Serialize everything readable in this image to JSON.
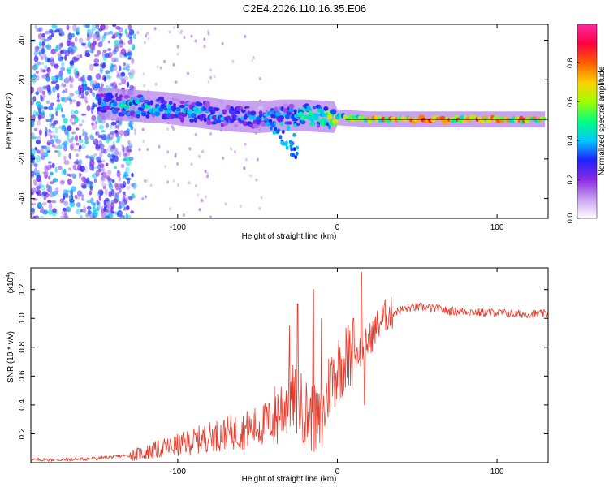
{
  "title": "C2E4.2026.110.16.35.E06",
  "colors": {
    "snr_line": "#e83a2a",
    "spectral_stops": [
      "#ffffff",
      "#c9a0f0",
      "#8a2be2",
      "#2020ff",
      "#00c8ff",
      "#00ff80",
      "#a0ff00",
      "#ffd000",
      "#ff6000",
      "#ff0040",
      "#ff2aa0"
    ]
  },
  "chart_data": [
    {
      "type": "heatmap",
      "name": "spectrogram",
      "xlabel": "Height of straight line (km)",
      "ylabel": "Frequency (Hz)",
      "xlim": [
        -192,
        132
      ],
      "ylim": [
        -50,
        48
      ],
      "xticks": [
        -100,
        0,
        100
      ],
      "yticks": [
        -40,
        -20,
        0,
        20,
        40
      ],
      "xtick_labels": [
        "-100",
        "0",
        "100"
      ],
      "ytick_labels": [
        "-40",
        "-20",
        "0",
        "20",
        "40"
      ],
      "colorbar": {
        "label": "Normalized spectral amplitude",
        "range": [
          0,
          1
        ],
        "ticks": [
          0.0,
          0.2,
          0.4,
          0.6,
          0.8
        ],
        "tick_labels": [
          "0.0",
          "0.2",
          "0.4",
          "0.6",
          "0.8"
        ]
      },
      "ridge": [
        {
          "x": -150,
          "f": 8,
          "amp": 0.45
        },
        {
          "x": -130,
          "f": 7,
          "amp": 0.5
        },
        {
          "x": -110,
          "f": 6,
          "amp": 0.45
        },
        {
          "x": -90,
          "f": 4,
          "amp": 0.45
        },
        {
          "x": -70,
          "f": 2,
          "amp": 0.45
        },
        {
          "x": -50,
          "f": 1,
          "amp": 0.4
        },
        {
          "x": -35,
          "f": 2,
          "amp": 0.45
        },
        {
          "x": -20,
          "f": 2,
          "amp": 0.55
        },
        {
          "x": 0,
          "f": 1,
          "amp": 0.7
        },
        {
          "x": 20,
          "f": 0,
          "amp": 0.85
        },
        {
          "x": 60,
          "f": 0,
          "amp": 0.9
        },
        {
          "x": 100,
          "f": 0,
          "amp": 0.85
        },
        {
          "x": 130,
          "f": 0,
          "amp": 0.8
        }
      ]
    },
    {
      "type": "line",
      "name": "snr",
      "title": "",
      "xlabel": "Height of straight line (km)",
      "ylabel": "SNR (10 * v/v)",
      "yscale_label": "(x10",
      "yscale_exp": "4",
      "yscale_close": ")",
      "xlim": [
        -192,
        132
      ],
      "ylim": [
        0,
        1.35
      ],
      "xticks": [
        -100,
        0,
        100
      ],
      "yticks": [
        0.2,
        0.4,
        0.6,
        0.8,
        1.0,
        1.2
      ],
      "xtick_labels": [
        "-100",
        "0",
        "100"
      ],
      "ytick_labels": [
        "0.2",
        "0.4",
        "0.6",
        "0.8",
        "1.0",
        "1.2"
      ],
      "series": [
        {
          "name": "SNR",
          "x": [
            -192,
            -170,
            -150,
            -140,
            -130,
            -120,
            -110,
            -100,
            -90,
            -80,
            -70,
            -60,
            -50,
            -40,
            -35,
            -30,
            -25,
            -20,
            -15,
            -10,
            -5,
            0,
            5,
            10,
            15,
            20,
            25,
            30,
            40,
            50,
            60,
            70,
            80,
            90,
            100,
            110,
            120,
            132
          ],
          "values": [
            0.02,
            0.02,
            0.03,
            0.04,
            0.05,
            0.07,
            0.1,
            0.12,
            0.15,
            0.18,
            0.2,
            0.22,
            0.25,
            0.3,
            0.38,
            0.45,
            0.42,
            0.35,
            0.3,
            0.25,
            0.55,
            0.65,
            0.72,
            0.75,
            0.78,
            0.85,
            0.95,
            1.02,
            1.06,
            1.08,
            1.07,
            1.05,
            1.05,
            1.04,
            1.04,
            1.03,
            1.03,
            1.03
          ],
          "spikes": [
            {
              "x": -30,
              "value": 0.95
            },
            {
              "x": -25,
              "value": 1.1
            },
            {
              "x": -15,
              "value": 1.2
            },
            {
              "x": -10,
              "value": 1.0
            },
            {
              "x": 10,
              "value": 1.0
            },
            {
              "x": 15,
              "value": 1.32
            },
            {
              "x": 17,
              "value": 0.4
            }
          ]
        }
      ]
    }
  ]
}
